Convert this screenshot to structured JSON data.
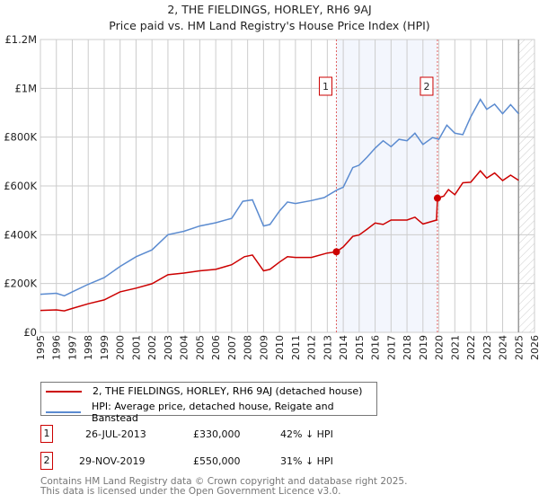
{
  "chart_data": {
    "type": "line",
    "title": "2, THE FIELDINGS, HORLEY, RH6 9AJ",
    "subtitle": "Price paid vs. HM Land Registry's House Price Index (HPI)",
    "xlim": [
      1995,
      2026
    ],
    "ylim": [
      0,
      1200000
    ],
    "yticks": [
      {
        "v": 0,
        "label": "£0"
      },
      {
        "v": 200000,
        "label": "£200K"
      },
      {
        "v": 400000,
        "label": "£400K"
      },
      {
        "v": 600000,
        "label": "£600K"
      },
      {
        "v": 800000,
        "label": "£800K"
      },
      {
        "v": 1000000,
        "label": "£1M"
      },
      {
        "v": 1200000,
        "label": "£1.2M"
      }
    ],
    "xticks": [
      "1995",
      "1996",
      "1997",
      "1998",
      "1999",
      "2000",
      "2001",
      "2002",
      "2003",
      "2004",
      "2005",
      "2006",
      "2007",
      "2008",
      "2009",
      "2010",
      "2011",
      "2012",
      "2013",
      "2014",
      "2015",
      "2016",
      "2017",
      "2018",
      "2019",
      "2020",
      "2021",
      "2022",
      "2023",
      "2024",
      "2025",
      "2026"
    ],
    "grid": true,
    "forecast_start": 2025.0,
    "shaded_range": [
      2013.57,
      2019.91
    ],
    "series": [
      {
        "name": "2, THE FIELDINGS, HORLEY, RH6 9AJ (detached house)",
        "color": "#cc0000",
        "x": [
          1995,
          1996,
          1996.5,
          1997,
          1998,
          1999,
          2000,
          2001,
          2002,
          2003,
          2004,
          2005,
          2006,
          2007,
          2007.8,
          2008.3,
          2009,
          2009.4,
          2010,
          2010.5,
          2011,
          2012,
          2013,
          2013.57,
          2014,
          2014.6,
          2015,
          2015.5,
          2016,
          2016.5,
          2017,
          2018,
          2018.5,
          2019,
          2019.85,
          2019.91,
          2020.3,
          2020.6,
          2021,
          2021.5,
          2022,
          2022.6,
          2023,
          2023.5,
          2024,
          2024.5,
          2025
        ],
        "y": [
          90000,
          92000,
          88000,
          98000,
          117000,
          133000,
          166000,
          181000,
          199000,
          236000,
          243000,
          252000,
          258000,
          277000,
          310000,
          317000,
          252000,
          258000,
          288000,
          310000,
          307000,
          307000,
          325000,
          330000,
          350000,
          393000,
          399000,
          423000,
          448000,
          442000,
          460000,
          460000,
          472000,
          444000,
          460000,
          550000,
          558000,
          585000,
          564000,
          613000,
          615000,
          662000,
          632000,
          653000,
          622000,
          644000,
          623000
        ]
      },
      {
        "name": "HPI: Average price, detached house, Reigate and Banstead",
        "color": "#5b8bd0",
        "x": [
          1995,
          1996,
          1996.5,
          1997,
          1998,
          1999,
          2000,
          2001,
          2002,
          2003,
          2004,
          2005,
          2006,
          2007,
          2007.7,
          2008.3,
          2009,
          2009.4,
          2010,
          2010.5,
          2011,
          2012,
          2012.8,
          2013.6,
          2014,
          2014.6,
          2015,
          2015.5,
          2016,
          2016.5,
          2017,
          2017.5,
          2018,
          2018.5,
          2019,
          2019.6,
          2020,
          2020.5,
          2021,
          2021.5,
          2022,
          2022.6,
          2023,
          2023.5,
          2024,
          2024.5,
          2025
        ],
        "y": [
          156000,
          160000,
          150000,
          166000,
          197000,
          224000,
          270000,
          310000,
          338000,
          400000,
          414000,
          436000,
          449000,
          467000,
          537000,
          543000,
          436000,
          442000,
          497000,
          534000,
          528000,
          540000,
          552000,
          583000,
          595000,
          675000,
          685000,
          718000,
          755000,
          785000,
          761000,
          791000,
          785000,
          816000,
          770000,
          798000,
          791000,
          849000,
          816000,
          810000,
          883000,
          955000,
          914000,
          935000,
          896000,
          933000,
          896000
        ]
      }
    ],
    "sales": [
      {
        "id": "1",
        "x": 2013.57,
        "y": 330000,
        "date": "26-JUL-2013",
        "price": "£330,000",
        "hpi": "42% ↓ HPI"
      },
      {
        "id": "2",
        "x": 2019.91,
        "y": 550000,
        "date": "29-NOV-2019",
        "price": "£550,000",
        "hpi": "31% ↓ HPI"
      }
    ]
  },
  "footer": {
    "line1": "Contains HM Land Registry data © Crown copyright and database right 2025.",
    "line2": "This data is licensed under the Open Government Licence v3.0."
  }
}
